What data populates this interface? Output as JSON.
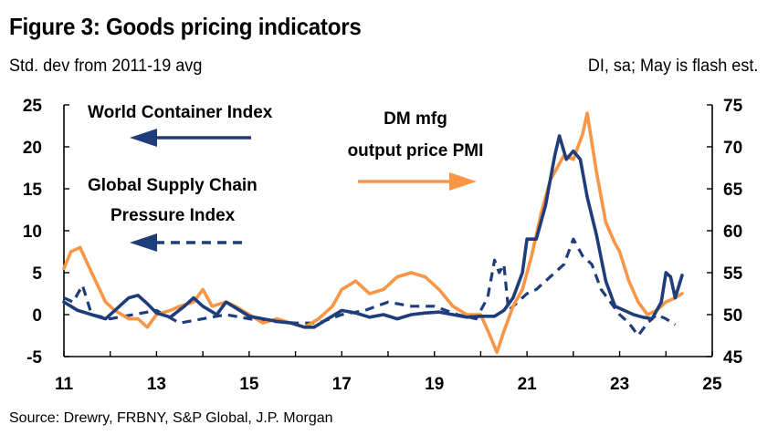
{
  "title": "Figure 3: Goods pricing indicators",
  "subtitle_left": "Std. dev from 2011-19 avg",
  "subtitle_right": "DI, sa; May is flash est.",
  "source": "Source: Drewry, FRBNY, S&P Global, J.P. Morgan",
  "colors": {
    "navy": "#1F3D7A",
    "orange": "#F79646",
    "axis": "#000000"
  },
  "chart_data": {
    "type": "line",
    "title": "Figure 3: Goods pricing indicators",
    "x_axis": {
      "ticks": [
        11,
        13,
        15,
        17,
        19,
        21,
        23,
        25
      ],
      "tick_labels": [
        "11",
        "13",
        "15",
        "17",
        "19",
        "21",
        "23",
        "25"
      ],
      "range": [
        2011,
        2025
      ]
    },
    "y_left": {
      "ticks": [
        -5,
        0,
        5,
        10,
        15,
        20,
        25
      ],
      "tick_labels": [
        "-5",
        "0",
        "5",
        "10",
        "15",
        "20",
        "25"
      ],
      "range": [
        -5,
        25
      ]
    },
    "y_right": {
      "ticks": [
        45,
        50,
        55,
        60,
        65,
        70,
        75
      ],
      "tick_labels": [
        "45",
        "50",
        "55",
        "60",
        "65",
        "70",
        "75"
      ],
      "range": [
        45,
        75
      ]
    },
    "grid": false,
    "annotations": [
      {
        "lines": [
          "World Container Index"
        ]
      },
      {
        "lines": [
          "Global Supply Chain",
          "Pressure Index"
        ]
      },
      {
        "lines": [
          "DM mfg",
          "output price PMI"
        ]
      }
    ],
    "series": [
      {
        "name": "World Container Index",
        "axis": "left",
        "style": "solid",
        "color": "#1F3D7A",
        "points": [
          [
            2011.0,
            1.5
          ],
          [
            2011.3,
            0.5
          ],
          [
            2011.6,
            0.0
          ],
          [
            2011.9,
            -0.5
          ],
          [
            2012.1,
            0.5
          ],
          [
            2012.4,
            2.0
          ],
          [
            2012.6,
            2.3
          ],
          [
            2012.8,
            1.3
          ],
          [
            2013.0,
            0.2
          ],
          [
            2013.3,
            -0.3
          ],
          [
            2013.6,
            1.0
          ],
          [
            2013.8,
            2.0
          ],
          [
            2014.0,
            1.0
          ],
          [
            2014.3,
            0.0
          ],
          [
            2014.5,
            1.5
          ],
          [
            2014.8,
            0.5
          ],
          [
            2015.0,
            -0.2
          ],
          [
            2015.3,
            -0.5
          ],
          [
            2015.6,
            -0.8
          ],
          [
            2015.9,
            -1.0
          ],
          [
            2016.2,
            -1.5
          ],
          [
            2016.4,
            -1.5
          ],
          [
            2016.7,
            -0.5
          ],
          [
            2017.0,
            0.5
          ],
          [
            2017.3,
            0.2
          ],
          [
            2017.6,
            -0.3
          ],
          [
            2017.9,
            0.0
          ],
          [
            2018.2,
            -0.5
          ],
          [
            2018.5,
            0.0
          ],
          [
            2018.8,
            0.2
          ],
          [
            2019.1,
            0.3
          ],
          [
            2019.4,
            0.0
          ],
          [
            2019.7,
            -0.3
          ],
          [
            2020.0,
            -0.2
          ],
          [
            2020.3,
            -0.2
          ],
          [
            2020.5,
            0.5
          ],
          [
            2020.7,
            2.0
          ],
          [
            2020.9,
            5.0
          ],
          [
            2021.0,
            9.0
          ],
          [
            2021.2,
            9.0
          ],
          [
            2021.4,
            13.0
          ],
          [
            2021.6,
            19.0
          ],
          [
            2021.7,
            21.3
          ],
          [
            2021.85,
            18.5
          ],
          [
            2022.0,
            19.5
          ],
          [
            2022.15,
            18.5
          ],
          [
            2022.3,
            14.0
          ],
          [
            2022.5,
            9.5
          ],
          [
            2022.7,
            4.0
          ],
          [
            2022.9,
            1.0
          ],
          [
            2023.1,
            0.5
          ],
          [
            2023.3,
            0.0
          ],
          [
            2023.5,
            -0.3
          ],
          [
            2023.7,
            -0.5
          ],
          [
            2023.9,
            1.5
          ],
          [
            2024.0,
            5.0
          ],
          [
            2024.1,
            4.5
          ],
          [
            2024.2,
            2.0
          ],
          [
            2024.35,
            4.7
          ]
        ]
      },
      {
        "name": "Global Supply Chain Pressure Index",
        "axis": "left",
        "style": "dashed",
        "color": "#1F3D7A",
        "points": [
          [
            2011.0,
            2.0
          ],
          [
            2011.2,
            1.5
          ],
          [
            2011.4,
            3.5
          ],
          [
            2011.6,
            0.0
          ],
          [
            2012.0,
            -0.5
          ],
          [
            2012.5,
            0.0
          ],
          [
            2013.0,
            0.5
          ],
          [
            2013.5,
            -1.0
          ],
          [
            2014.0,
            -0.5
          ],
          [
            2014.5,
            0.0
          ],
          [
            2015.0,
            -0.5
          ],
          [
            2015.5,
            -0.8
          ],
          [
            2016.0,
            -1.0
          ],
          [
            2016.5,
            -1.0
          ],
          [
            2017.0,
            0.0
          ],
          [
            2017.5,
            0.5
          ],
          [
            2018.0,
            1.5
          ],
          [
            2018.5,
            1.0
          ],
          [
            2019.0,
            1.0
          ],
          [
            2019.5,
            0.0
          ],
          [
            2019.9,
            -0.5
          ],
          [
            2020.15,
            2.0
          ],
          [
            2020.3,
            6.5
          ],
          [
            2020.4,
            5.0
          ],
          [
            2020.5,
            6.0
          ],
          [
            2020.6,
            0.5
          ],
          [
            2020.8,
            1.5
          ],
          [
            2021.0,
            2.5
          ],
          [
            2021.2,
            3.0
          ],
          [
            2021.5,
            4.5
          ],
          [
            2021.8,
            6.0
          ],
          [
            2022.0,
            9.0
          ],
          [
            2022.2,
            7.0
          ],
          [
            2022.4,
            6.0
          ],
          [
            2022.6,
            3.0
          ],
          [
            2022.8,
            1.5
          ],
          [
            2023.0,
            0.0
          ],
          [
            2023.2,
            -1.0
          ],
          [
            2023.4,
            -2.5
          ],
          [
            2023.6,
            -1.0
          ],
          [
            2023.8,
            0.0
          ],
          [
            2024.0,
            -0.5
          ],
          [
            2024.2,
            -1.2
          ]
        ]
      },
      {
        "name": "DM mfg output price PMI",
        "axis": "right",
        "style": "solid",
        "color": "#F79646",
        "points": [
          [
            2011.0,
            55.5
          ],
          [
            2011.15,
            57.5
          ],
          [
            2011.35,
            58.0
          ],
          [
            2011.6,
            55.0
          ],
          [
            2011.9,
            51.5
          ],
          [
            2012.1,
            50.5
          ],
          [
            2012.4,
            49.5
          ],
          [
            2012.6,
            49.5
          ],
          [
            2012.8,
            48.5
          ],
          [
            2013.0,
            50.0
          ],
          [
            2013.3,
            50.5
          ],
          [
            2013.5,
            51.0
          ],
          [
            2013.8,
            51.5
          ],
          [
            2014.0,
            53.0
          ],
          [
            2014.2,
            51.0
          ],
          [
            2014.5,
            51.5
          ],
          [
            2014.7,
            51.0
          ],
          [
            2015.0,
            50.0
          ],
          [
            2015.3,
            49.0
          ],
          [
            2015.6,
            49.5
          ],
          [
            2015.9,
            49.0
          ],
          [
            2016.2,
            48.5
          ],
          [
            2016.5,
            49.5
          ],
          [
            2016.8,
            51.0
          ],
          [
            2017.0,
            53.0
          ],
          [
            2017.3,
            54.0
          ],
          [
            2017.6,
            52.5
          ],
          [
            2017.9,
            53.0
          ],
          [
            2018.2,
            54.5
          ],
          [
            2018.5,
            55.0
          ],
          [
            2018.8,
            54.5
          ],
          [
            2019.1,
            53.0
          ],
          [
            2019.4,
            51.0
          ],
          [
            2019.7,
            50.0
          ],
          [
            2020.0,
            50.0
          ],
          [
            2020.2,
            47.5
          ],
          [
            2020.35,
            45.5
          ],
          [
            2020.5,
            48.0
          ],
          [
            2020.7,
            51.0
          ],
          [
            2020.9,
            53.0
          ],
          [
            2021.1,
            57.0
          ],
          [
            2021.3,
            62.0
          ],
          [
            2021.5,
            66.0
          ],
          [
            2021.8,
            69.0
          ],
          [
            2022.0,
            68.5
          ],
          [
            2022.2,
            71.5
          ],
          [
            2022.3,
            74.0
          ],
          [
            2022.5,
            67.0
          ],
          [
            2022.7,
            61.0
          ],
          [
            2022.9,
            58.5
          ],
          [
            2023.0,
            57.5
          ],
          [
            2023.2,
            54.0
          ],
          [
            2023.4,
            51.5
          ],
          [
            2023.6,
            50.0
          ],
          [
            2023.8,
            50.5
          ],
          [
            2024.0,
            51.5
          ],
          [
            2024.2,
            52.0
          ],
          [
            2024.35,
            52.5
          ]
        ]
      }
    ]
  }
}
